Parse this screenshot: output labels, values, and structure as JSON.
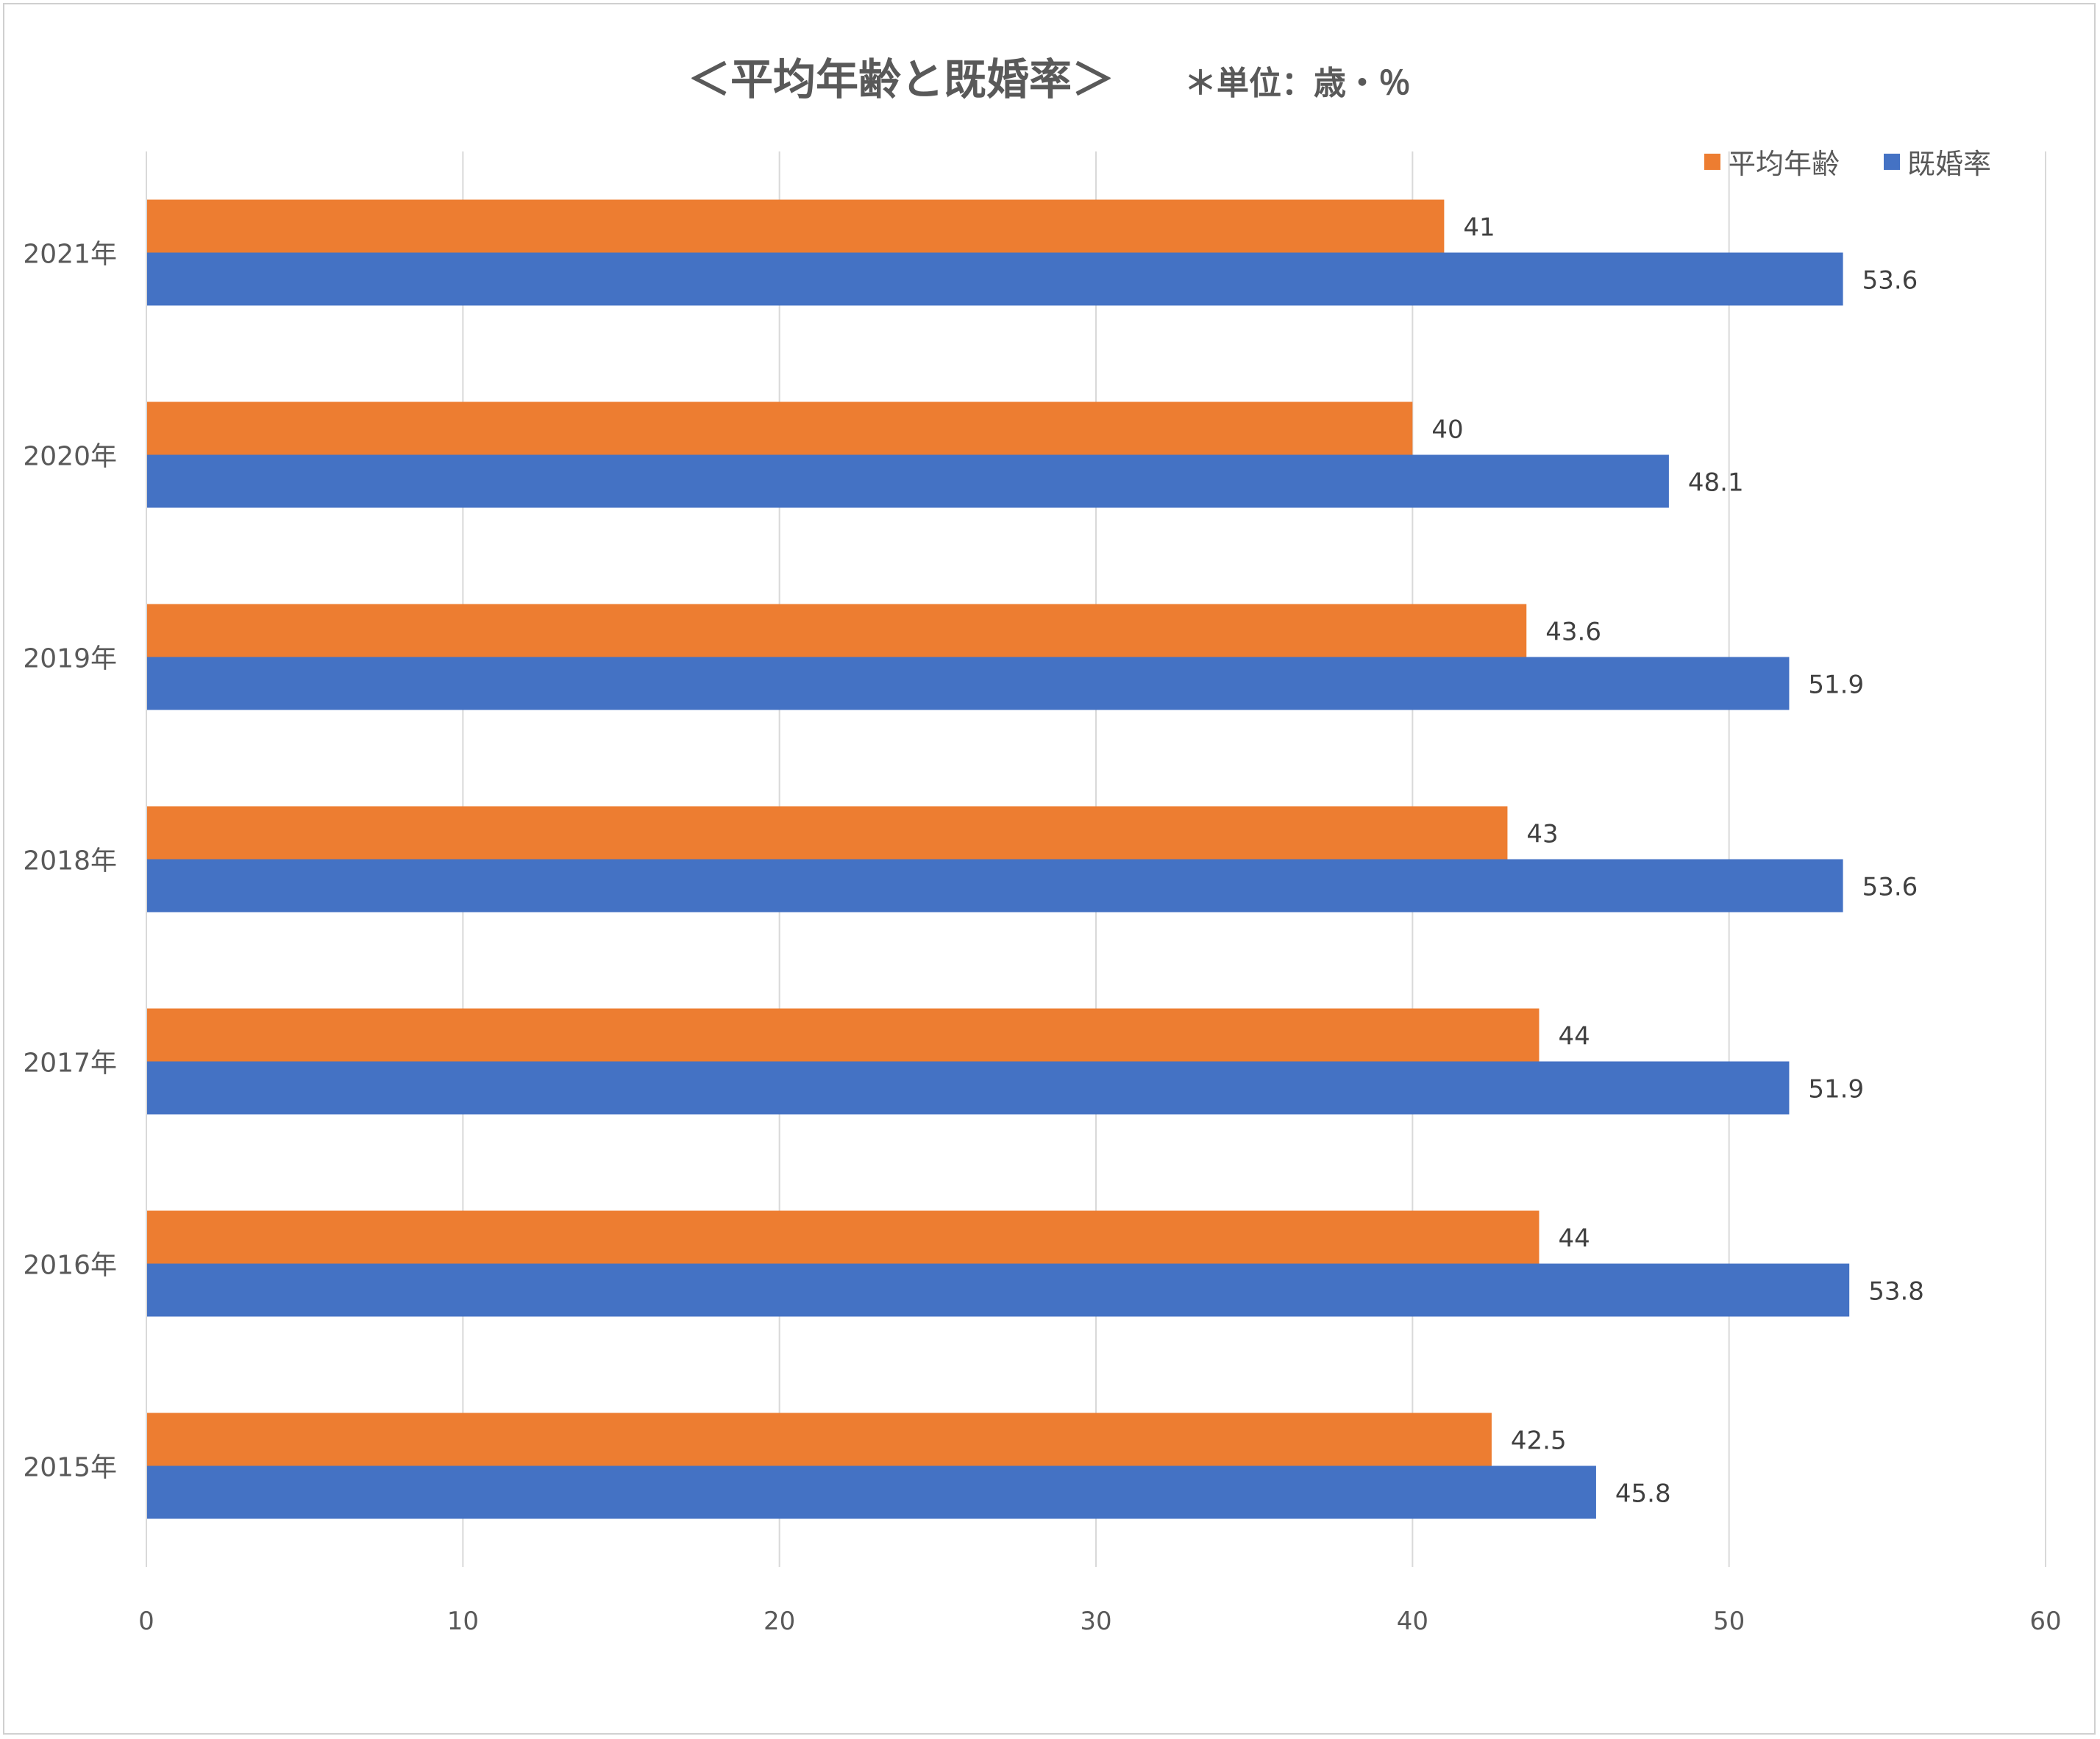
{
  "chart_data": {
    "type": "bar",
    "orientation": "horizontal",
    "title": "＜平均年齢と既婚率＞",
    "subtitle": "＊単位：歳・％",
    "categories": [
      "2021年",
      "2020年",
      "2019年",
      "2018年",
      "2017年",
      "2016年",
      "2015年"
    ],
    "series": [
      {
        "name": "平均年齢",
        "color": "#ED7D31",
        "values": [
          41,
          40,
          43.6,
          43,
          44,
          44,
          42.5
        ]
      },
      {
        "name": "既婚率",
        "color": "#4472C4",
        "values": [
          53.6,
          48.1,
          51.9,
          53.6,
          51.9,
          53.8,
          45.8
        ]
      }
    ],
    "data_labels": true,
    "xlim": [
      0,
      60
    ],
    "x_ticks": [
      0,
      10,
      20,
      30,
      40,
      50,
      60
    ],
    "grid": "vertical",
    "legend_position": "top-right"
  }
}
